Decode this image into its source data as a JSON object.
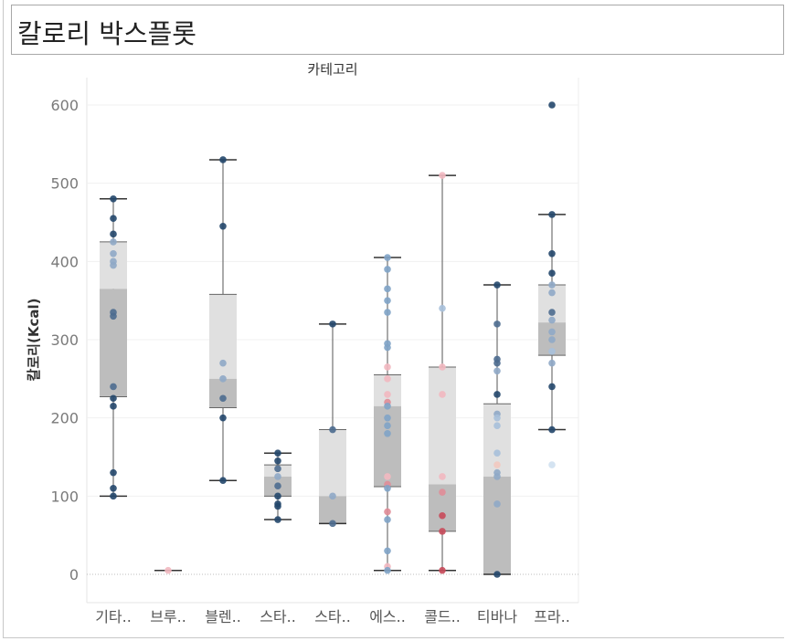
{
  "title": "칼로리 박스플롯",
  "chart_data": {
    "type": "box",
    "header": "카테고리",
    "ylabel": "칼로리(Kcal)",
    "ylim": [
      -35,
      620
    ],
    "yticks": [
      0,
      100,
      200,
      300,
      400,
      500,
      600
    ],
    "categories": [
      "기타..",
      "브루..",
      "블렌..",
      "스타..",
      "스타..",
      "에스..",
      "콜드..",
      "티바나",
      "프라.."
    ],
    "boxes": [
      {
        "min": 100,
        "q1": 227,
        "median": 365,
        "q3": 425,
        "max": 480
      },
      {
        "min": 5,
        "q1": 5,
        "median": 5,
        "q3": 5,
        "max": 5
      },
      {
        "min": 120,
        "q1": 213,
        "median": 250,
        "q3": 358,
        "max": 530
      },
      {
        "min": 70,
        "q1": 100,
        "median": 125,
        "q3": 140,
        "max": 155
      },
      {
        "min": 65,
        "q1": 65,
        "median": 100,
        "q3": 185,
        "max": 320
      },
      {
        "min": 5,
        "q1": 112,
        "median": 215,
        "q3": 255,
        "max": 405
      },
      {
        "min": 5,
        "q1": 55,
        "median": 115,
        "q3": 265,
        "max": 510
      },
      {
        "min": 0,
        "q1": 0,
        "median": 125,
        "q3": 218,
        "max": 370
      },
      {
        "min": 185,
        "q1": 280,
        "median": 322,
        "q3": 370,
        "max": 460
      }
    ],
    "points": [
      {
        "cat": 0,
        "values": [
          480,
          455,
          435,
          425,
          410,
          400,
          395,
          335,
          330,
          240,
          225,
          215,
          130,
          110,
          100
        ],
        "colors": [
          "#24476b",
          "#24476b",
          "#24476b",
          "#8fa9c6",
          "#8fa9c6",
          "#8fa9c6",
          "#8fa9c6",
          "#4d6c8f",
          "#4d6c8f",
          "#4d6c8f",
          "#24476b",
          "#24476b",
          "#24476b",
          "#24476b",
          "#24476b"
        ]
      },
      {
        "cat": 1,
        "values": [
          5
        ],
        "colors": [
          "#f2b8c0"
        ]
      },
      {
        "cat": 2,
        "values": [
          530,
          445,
          270,
          250,
          225,
          200,
          120
        ],
        "colors": [
          "#24476b",
          "#24476b",
          "#8fa9c6",
          "#8fa9c6",
          "#4d6c8f",
          "#24476b",
          "#24476b"
        ]
      },
      {
        "cat": 3,
        "values": [
          155,
          145,
          135,
          125,
          113,
          100,
          90,
          87,
          70
        ],
        "colors": [
          "#24476b",
          "#24476b",
          "#4d6c8f",
          "#8fa9c6",
          "#4d6c8f",
          "#24476b",
          "#24476b",
          "#24476b",
          "#24476b"
        ]
      },
      {
        "cat": 4,
        "values": [
          320,
          185,
          100,
          65
        ],
        "colors": [
          "#24476b",
          "#4d6c8f",
          "#8fa9c6",
          "#4d6c8f"
        ]
      },
      {
        "cat": 5,
        "values": [
          405,
          390,
          365,
          350,
          335,
          295,
          290,
          265,
          250,
          230,
          220,
          215,
          200,
          190,
          180,
          125,
          115,
          110,
          80,
          70,
          30,
          10,
          5
        ],
        "colors": [
          "#7fa3c7",
          "#7fa3c7",
          "#7fa3c7",
          "#7fa3c7",
          "#7fa3c7",
          "#7fa3c7",
          "#7fa3c7",
          "#f2b8c0",
          "#f2b8c0",
          "#f2b8c0",
          "#e08c97",
          "#7fa3c7",
          "#7fa3c7",
          "#7fa3c7",
          "#7fa3c7",
          "#f2b8c0",
          "#e08c97",
          "#7fa3c7",
          "#e08c97",
          "#7fa3c7",
          "#7fa3c7",
          "#f2b8c0",
          "#7fa3c7"
        ]
      },
      {
        "cat": 6,
        "values": [
          510,
          340,
          265,
          230,
          125,
          105,
          75,
          55,
          5
        ],
        "colors": [
          "#f2b8c0",
          "#a7c0da",
          "#f2b8c0",
          "#f2b8c0",
          "#f2b8c0",
          "#e08c97",
          "#c84a5a",
          "#c84a5a",
          "#c84a5a"
        ]
      },
      {
        "cat": 7,
        "values": [
          370,
          320,
          275,
          270,
          260,
          230,
          205,
          200,
          190,
          155,
          140,
          130,
          125,
          90,
          0
        ],
        "colors": [
          "#24476b",
          "#4d6c8f",
          "#4d6c8f",
          "#4d6c8f",
          "#8fa9c6",
          "#24476b",
          "#8fa9c6",
          "#a7c0da",
          "#a7c0da",
          "#a7c0da",
          "#f2c9c0",
          "#8fa9c6",
          "#8fa9c6",
          "#8fa9c6",
          "#24476b"
        ]
      },
      {
        "cat": 8,
        "values": [
          600,
          460,
          410,
          385,
          370,
          360,
          335,
          325,
          310,
          300,
          285,
          270,
          240,
          185,
          140
        ],
        "colors": [
          "#24476b",
          "#24476b",
          "#24476b",
          "#24476b",
          "#8fa9c6",
          "#8fa9c6",
          "#4d6c8f",
          "#8fa9c6",
          "#8fa9c6",
          "#8fa9c6",
          "#a7c0da",
          "#8fa9c6",
          "#24476b",
          "#24476b",
          "#cfe0f0"
        ]
      }
    ]
  }
}
